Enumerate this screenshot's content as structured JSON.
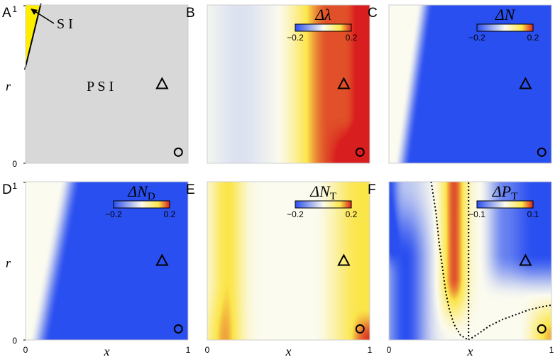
{
  "panels": [
    {
      "id": "A",
      "letter": "A",
      "colorbar": null,
      "field": "regions",
      "annotations": {
        "si": "S I",
        "psi": "P S I"
      },
      "show_y_axis": true,
      "show_x_axis": false,
      "y_ticks": [
        "0",
        "1"
      ],
      "y_label": "r"
    },
    {
      "id": "B",
      "letter": "B",
      "field": "lambda",
      "show_y_axis": false,
      "show_x_axis": false,
      "title_main": "Δλ",
      "title_sub": "",
      "colorbar": {
        "min_label": "−0.2",
        "max_label": "0.2",
        "min": -0.2,
        "max": 0.2
      }
    },
    {
      "id": "C",
      "letter": "C",
      "field": "N",
      "show_y_axis": false,
      "show_x_axis": false,
      "title_main": "ΔN",
      "title_sub": "",
      "colorbar": {
        "min_label": "−0.2",
        "max_label": "0.2",
        "min": -0.2,
        "max": 0.2
      }
    },
    {
      "id": "D",
      "letter": "D",
      "field": "ND",
      "show_y_axis": true,
      "show_x_axis": true,
      "title_main": "ΔN",
      "title_sub": "D",
      "y_ticks": [
        "0",
        "1"
      ],
      "y_label": "r",
      "x_ticks": [
        "0",
        "1"
      ],
      "x_label": "x",
      "colorbar": {
        "min_label": "−0.2",
        "max_label": "0.2",
        "min": -0.2,
        "max": 0.2
      }
    },
    {
      "id": "E",
      "letter": "E",
      "field": "NT",
      "show_y_axis": false,
      "show_x_axis": true,
      "title_main": "ΔN",
      "title_sub": "T",
      "x_ticks": [
        "0",
        "1"
      ],
      "x_label": "x",
      "colorbar": {
        "min_label": "−0.2",
        "max_label": "0.2",
        "min": -0.2,
        "max": 0.2
      }
    },
    {
      "id": "F",
      "letter": "F",
      "field": "PT",
      "show_y_axis": false,
      "show_x_axis": true,
      "title_main": "ΔP",
      "title_sub": "T",
      "x_ticks": [
        "0",
        "1"
      ],
      "x_label": "x",
      "colorbar": {
        "min_label": "−0.1",
        "max_label": "0.1",
        "min": -0.1,
        "max": 0.1
      }
    }
  ],
  "chart_data": [
    {
      "type": "heatmap",
      "panel": "A",
      "xlim": [
        0,
        1
      ],
      "ylim": [
        0,
        1
      ],
      "regions": [
        {
          "name": "S I",
          "color": "#ffee00"
        },
        {
          "name": "P S I",
          "color": "#d8d8d8"
        }
      ],
      "boundary": {
        "x": [
          0.0,
          0.09
        ],
        "y": [
          0.6,
          1.0
        ]
      },
      "markers": [
        {
          "shape": "triangle",
          "x": 0.84,
          "y": 0.5
        },
        {
          "shape": "circle",
          "x": 0.94,
          "y": 0.07
        }
      ]
    },
    {
      "type": "heatmap",
      "panel": "B",
      "xlim": [
        0,
        1
      ],
      "ylim": [
        0,
        1
      ],
      "zlim": [
        -0.2,
        0.2
      ],
      "markers": [
        {
          "shape": "triangle",
          "x": 0.84,
          "y": 0.5
        },
        {
          "shape": "circle",
          "x": 0.94,
          "y": 0.07
        }
      ]
    },
    {
      "type": "heatmap",
      "panel": "C",
      "xlim": [
        0,
        1
      ],
      "ylim": [
        0,
        1
      ],
      "zlim": [
        -0.2,
        0.2
      ],
      "markers": [
        {
          "shape": "triangle",
          "x": 0.84,
          "y": 0.5
        },
        {
          "shape": "circle",
          "x": 0.94,
          "y": 0.07
        }
      ]
    },
    {
      "type": "heatmap",
      "panel": "D",
      "xlim": [
        0,
        1
      ],
      "ylim": [
        0,
        1
      ],
      "zlim": [
        -0.2,
        0.2
      ],
      "markers": [
        {
          "shape": "triangle",
          "x": 0.84,
          "y": 0.5
        },
        {
          "shape": "circle",
          "x": 0.94,
          "y": 0.07
        }
      ]
    },
    {
      "type": "heatmap",
      "panel": "E",
      "xlim": [
        0,
        1
      ],
      "ylim": [
        0,
        1
      ],
      "zlim": [
        -0.2,
        0.2
      ],
      "markers": [
        {
          "shape": "triangle",
          "x": 0.84,
          "y": 0.5
        },
        {
          "shape": "circle",
          "x": 0.94,
          "y": 0.07
        }
      ]
    },
    {
      "type": "heatmap",
      "panel": "F",
      "xlim": [
        0,
        1
      ],
      "ylim": [
        0,
        1
      ],
      "zlim": [
        -0.1,
        0.1
      ],
      "dotted_contours": [
        {
          "x": [
            0.26,
            0.29,
            0.31,
            0.33,
            0.35,
            0.37,
            0.4,
            0.44,
            0.49
          ],
          "y": [
            1.0,
            0.8,
            0.6,
            0.45,
            0.3,
            0.2,
            0.1,
            0.03,
            0.0
          ]
        },
        {
          "x": [
            0.49,
            0.49
          ],
          "y": [
            0.0,
            1.0
          ]
        },
        {
          "x": [
            0.49,
            0.55,
            0.62,
            0.7,
            0.78,
            0.86,
            0.94,
            1.0
          ],
          "y": [
            0.0,
            0.04,
            0.09,
            0.13,
            0.16,
            0.19,
            0.21,
            0.22
          ]
        }
      ],
      "markers": [
        {
          "shape": "triangle",
          "x": 0.84,
          "y": 0.5
        },
        {
          "shape": "circle",
          "x": 0.94,
          "y": 0.07
        }
      ]
    }
  ],
  "colors": {
    "low": "#2a4ff0",
    "mid": "#fbfbf0",
    "high1": "#fbe64a",
    "high2": "#d81e1e"
  }
}
